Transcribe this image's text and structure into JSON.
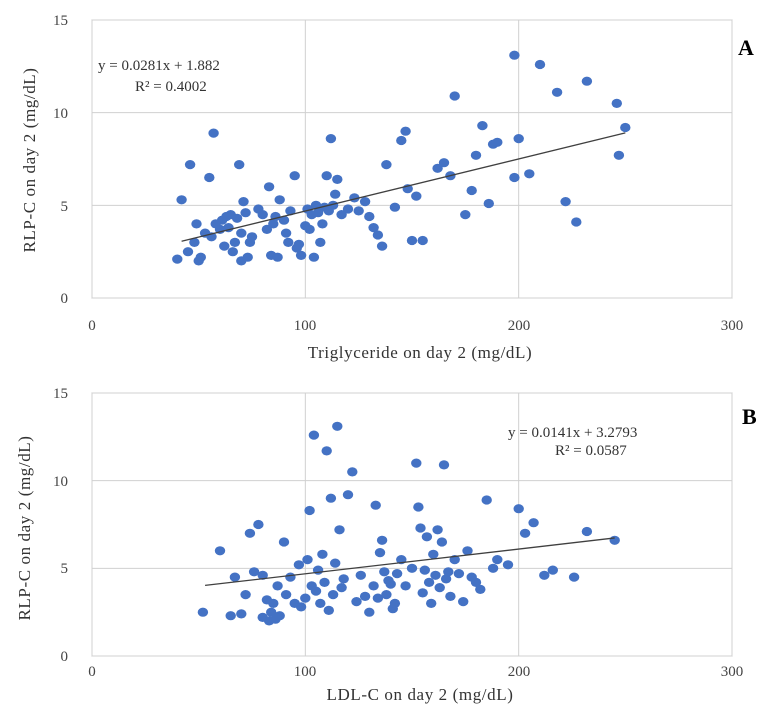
{
  "chart_data": [
    {
      "type": "scatter",
      "panel_label": "A",
      "xlabel": "Triglyceride on day 2 (mg/dL)",
      "ylabel": "RLP-C on day 2  (mg/dL)",
      "xlim": [
        0,
        300
      ],
      "ylim": [
        0,
        15
      ],
      "xticks": [
        "0",
        "100",
        "200",
        "300"
      ],
      "yticks": [
        "0",
        "5",
        "10",
        "15"
      ],
      "grid": true,
      "equation": "y = 0.0281x + 1.882",
      "r_squared": "R² = 0.4002",
      "trendline": {
        "slope": 0.0281,
        "intercept": 1.882,
        "x_range": [
          42,
          250
        ]
      },
      "marker_color": "#4472c4",
      "series": [
        {
          "points": [
            [
              40,
              2.1
            ],
            [
              42,
              5.3
            ],
            [
              45,
              2.5
            ],
            [
              46,
              7.2
            ],
            [
              48,
              3.0
            ],
            [
              49,
              4.0
            ],
            [
              50,
              2.0
            ],
            [
              51,
              2.2
            ],
            [
              53,
              3.5
            ],
            [
              55,
              6.5
            ],
            [
              56,
              3.3
            ],
            [
              57,
              8.9
            ],
            [
              58,
              4.0
            ],
            [
              60,
              3.7
            ],
            [
              61,
              4.2
            ],
            [
              62,
              2.8
            ],
            [
              63,
              4.4
            ],
            [
              64,
              3.8
            ],
            [
              65,
              4.5
            ],
            [
              66,
              2.5
            ],
            [
              67,
              3.0
            ],
            [
              68,
              4.3
            ],
            [
              69,
              7.2
            ],
            [
              70,
              2.0
            ],
            [
              70,
              3.5
            ],
            [
              71,
              5.2
            ],
            [
              72,
              4.6
            ],
            [
              73,
              2.2
            ],
            [
              74,
              3.0
            ],
            [
              75,
              3.3
            ],
            [
              78,
              4.8
            ],
            [
              80,
              4.5
            ],
            [
              82,
              3.7
            ],
            [
              83,
              6.0
            ],
            [
              84,
              2.3
            ],
            [
              85,
              4.0
            ],
            [
              86,
              4.4
            ],
            [
              87,
              2.2
            ],
            [
              88,
              5.3
            ],
            [
              90,
              4.2
            ],
            [
              91,
              3.5
            ],
            [
              92,
              3.0
            ],
            [
              93,
              4.7
            ],
            [
              95,
              6.6
            ],
            [
              96,
              2.7
            ],
            [
              97,
              2.9
            ],
            [
              98,
              2.3
            ],
            [
              100,
              3.9
            ],
            [
              101,
              4.8
            ],
            [
              102,
              3.7
            ],
            [
              103,
              4.5
            ],
            [
              104,
              2.2
            ],
            [
              105,
              5.0
            ],
            [
              106,
              4.6
            ],
            [
              107,
              3.0
            ],
            [
              108,
              4.0
            ],
            [
              109,
              4.9
            ],
            [
              110,
              6.6
            ],
            [
              111,
              4.7
            ],
            [
              112,
              8.6
            ],
            [
              113,
              5.0
            ],
            [
              114,
              5.6
            ],
            [
              115,
              6.4
            ],
            [
              117,
              4.5
            ],
            [
              120,
              4.8
            ],
            [
              123,
              5.4
            ],
            [
              125,
              4.7
            ],
            [
              128,
              5.2
            ],
            [
              130,
              4.4
            ],
            [
              132,
              3.8
            ],
            [
              134,
              3.4
            ],
            [
              136,
              2.8
            ],
            [
              138,
              7.2
            ],
            [
              142,
              4.9
            ],
            [
              145,
              8.5
            ],
            [
              147,
              9.0
            ],
            [
              148,
              5.9
            ],
            [
              150,
              3.1
            ],
            [
              152,
              5.5
            ],
            [
              155,
              3.1
            ],
            [
              162,
              7.0
            ],
            [
              165,
              7.3
            ],
            [
              168,
              6.6
            ],
            [
              170,
              10.9
            ],
            [
              175,
              4.5
            ],
            [
              178,
              5.8
            ],
            [
              180,
              7.7
            ],
            [
              183,
              9.3
            ],
            [
              186,
              5.1
            ],
            [
              188,
              8.3
            ],
            [
              190,
              8.4
            ],
            [
              198,
              13.1
            ],
            [
              198,
              6.5
            ],
            [
              200,
              8.6
            ],
            [
              205,
              6.7
            ],
            [
              210,
              12.6
            ],
            [
              218,
              11.1
            ],
            [
              222,
              5.2
            ],
            [
              227,
              4.1
            ],
            [
              232,
              11.7
            ],
            [
              246,
              10.5
            ],
            [
              247,
              7.7
            ],
            [
              250,
              9.2
            ]
          ]
        }
      ]
    },
    {
      "type": "scatter",
      "panel_label": "B",
      "xlabel": "LDL-C on day 2 (mg/dL)",
      "ylabel": "RLP-C on day 2 (mg/dL)",
      "xlim": [
        0,
        300
      ],
      "ylim": [
        0,
        15
      ],
      "xticks": [
        "0",
        "100",
        "200",
        "300"
      ],
      "yticks": [
        "0",
        "5",
        "10",
        "15"
      ],
      "grid": true,
      "equation": "y = 0.0141x + 3.2793",
      "r_squared": "R² = 0.0587",
      "trendline": {
        "slope": 0.0141,
        "intercept": 3.2793,
        "x_range": [
          53,
          245
        ]
      },
      "marker_color": "#4472c4",
      "series": [
        {
          "points": [
            [
              52,
              2.5
            ],
            [
              60,
              6.0
            ],
            [
              65,
              2.3
            ],
            [
              67,
              4.5
            ],
            [
              70,
              2.4
            ],
            [
              72,
              3.5
            ],
            [
              74,
              7.0
            ],
            [
              76,
              4.8
            ],
            [
              78,
              7.5
            ],
            [
              80,
              2.2
            ],
            [
              80,
              4.6
            ],
            [
              82,
              3.2
            ],
            [
              83,
              2.0
            ],
            [
              84,
              2.5
            ],
            [
              85,
              3.0
            ],
            [
              86,
              2.1
            ],
            [
              87,
              4.0
            ],
            [
              88,
              2.3
            ],
            [
              90,
              6.5
            ],
            [
              91,
              3.5
            ],
            [
              93,
              4.5
            ],
            [
              95,
              3.0
            ],
            [
              97,
              5.2
            ],
            [
              98,
              2.8
            ],
            [
              100,
              3.3
            ],
            [
              101,
              5.5
            ],
            [
              102,
              8.3
            ],
            [
              103,
              4.0
            ],
            [
              104,
              12.6
            ],
            [
              105,
              3.7
            ],
            [
              106,
              4.9
            ],
            [
              107,
              3.0
            ],
            [
              108,
              5.8
            ],
            [
              109,
              4.2
            ],
            [
              110,
              11.7
            ],
            [
              111,
              2.6
            ],
            [
              112,
              9.0
            ],
            [
              113,
              3.5
            ],
            [
              114,
              5.3
            ],
            [
              115,
              13.1
            ],
            [
              116,
              7.2
            ],
            [
              117,
              3.9
            ],
            [
              118,
              4.4
            ],
            [
              120,
              9.2
            ],
            [
              122,
              10.5
            ],
            [
              124,
              3.1
            ],
            [
              126,
              4.6
            ],
            [
              128,
              3.4
            ],
            [
              130,
              2.5
            ],
            [
              132,
              4.0
            ],
            [
              133,
              8.6
            ],
            [
              134,
              3.3
            ],
            [
              135,
              5.9
            ],
            [
              136,
              6.6
            ],
            [
              137,
              4.8
            ],
            [
              138,
              3.5
            ],
            [
              139,
              4.3
            ],
            [
              140,
              4.1
            ],
            [
              141,
              2.7
            ],
            [
              142,
              3.0
            ],
            [
              143,
              4.7
            ],
            [
              145,
              5.5
            ],
            [
              147,
              4.0
            ],
            [
              150,
              5.0
            ],
            [
              152,
              11.0
            ],
            [
              153,
              8.5
            ],
            [
              154,
              7.3
            ],
            [
              155,
              3.6
            ],
            [
              156,
              4.9
            ],
            [
              157,
              6.8
            ],
            [
              158,
              4.2
            ],
            [
              159,
              3.0
            ],
            [
              160,
              5.8
            ],
            [
              161,
              4.6
            ],
            [
              162,
              7.2
            ],
            [
              163,
              3.9
            ],
            [
              164,
              6.5
            ],
            [
              165,
              10.9
            ],
            [
              166,
              4.4
            ],
            [
              167,
              4.8
            ],
            [
              168,
              3.4
            ],
            [
              170,
              5.5
            ],
            [
              172,
              4.7
            ],
            [
              174,
              3.1
            ],
            [
              176,
              6.0
            ],
            [
              178,
              4.5
            ],
            [
              180,
              4.2
            ],
            [
              182,
              3.8
            ],
            [
              185,
              8.9
            ],
            [
              188,
              5.0
            ],
            [
              190,
              5.5
            ],
            [
              195,
              5.2
            ],
            [
              200,
              8.4
            ],
            [
              203,
              7.0
            ],
            [
              207,
              7.6
            ],
            [
              212,
              4.6
            ],
            [
              216,
              4.9
            ],
            [
              226,
              4.5
            ],
            [
              232,
              7.1
            ],
            [
              245,
              6.6
            ]
          ]
        }
      ]
    }
  ]
}
